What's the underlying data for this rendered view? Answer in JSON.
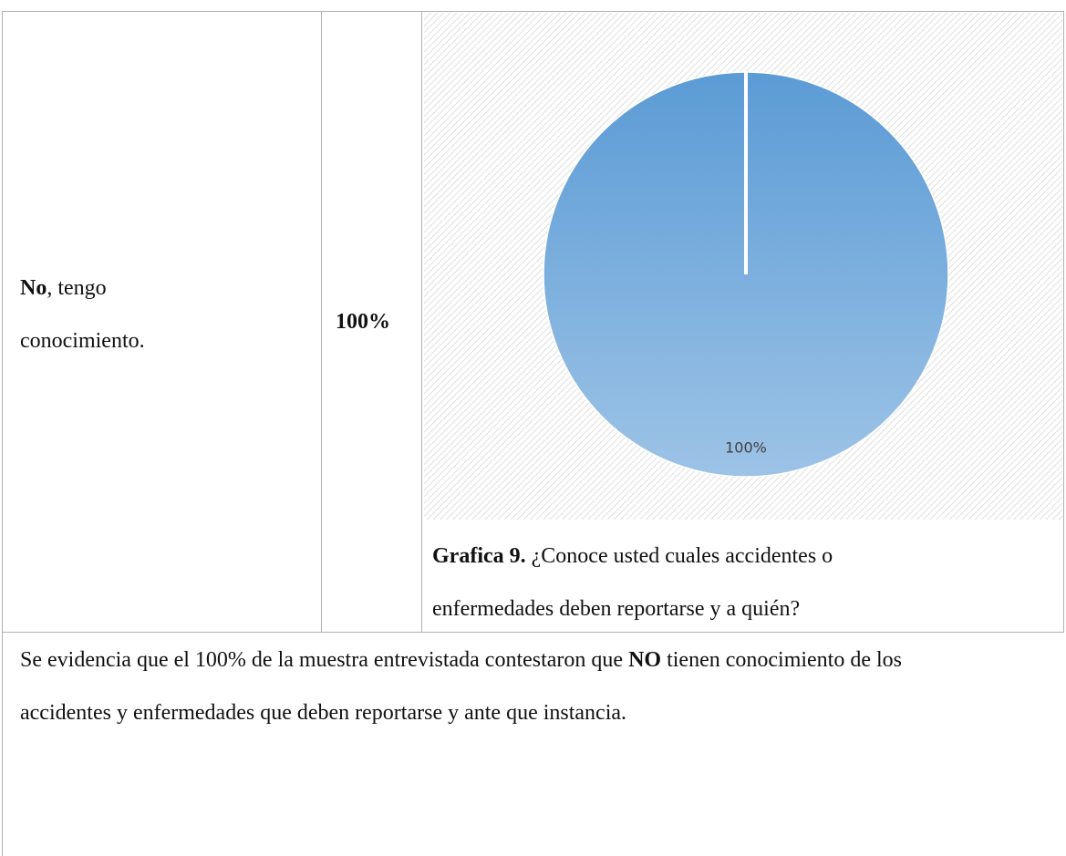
{
  "table": {
    "rows": [
      {
        "answer": {
          "bold": "No",
          "rest": ", tengo conocimiento."
        },
        "percent": "100%",
        "caption": {
          "bold": "Grafica 9.",
          "rest": " ¿Conoce usted cuales accidentes o enfermedades deben reportarse y a quién?"
        }
      },
      {
        "paragraph": {
          "before": "Se evidencia que el 100% de la muestra entrevistada contestaron que ",
          "bold": "NO",
          "after": " tienen conocimiento de los accidentes y enfermedades que deben reportarse y ante que instancia."
        }
      }
    ]
  },
  "chart_data": {
    "type": "pie",
    "categories": [
      null
    ],
    "values": [
      100
    ],
    "value_labels": [
      "100%"
    ],
    "color": "#5b9bd5"
  }
}
